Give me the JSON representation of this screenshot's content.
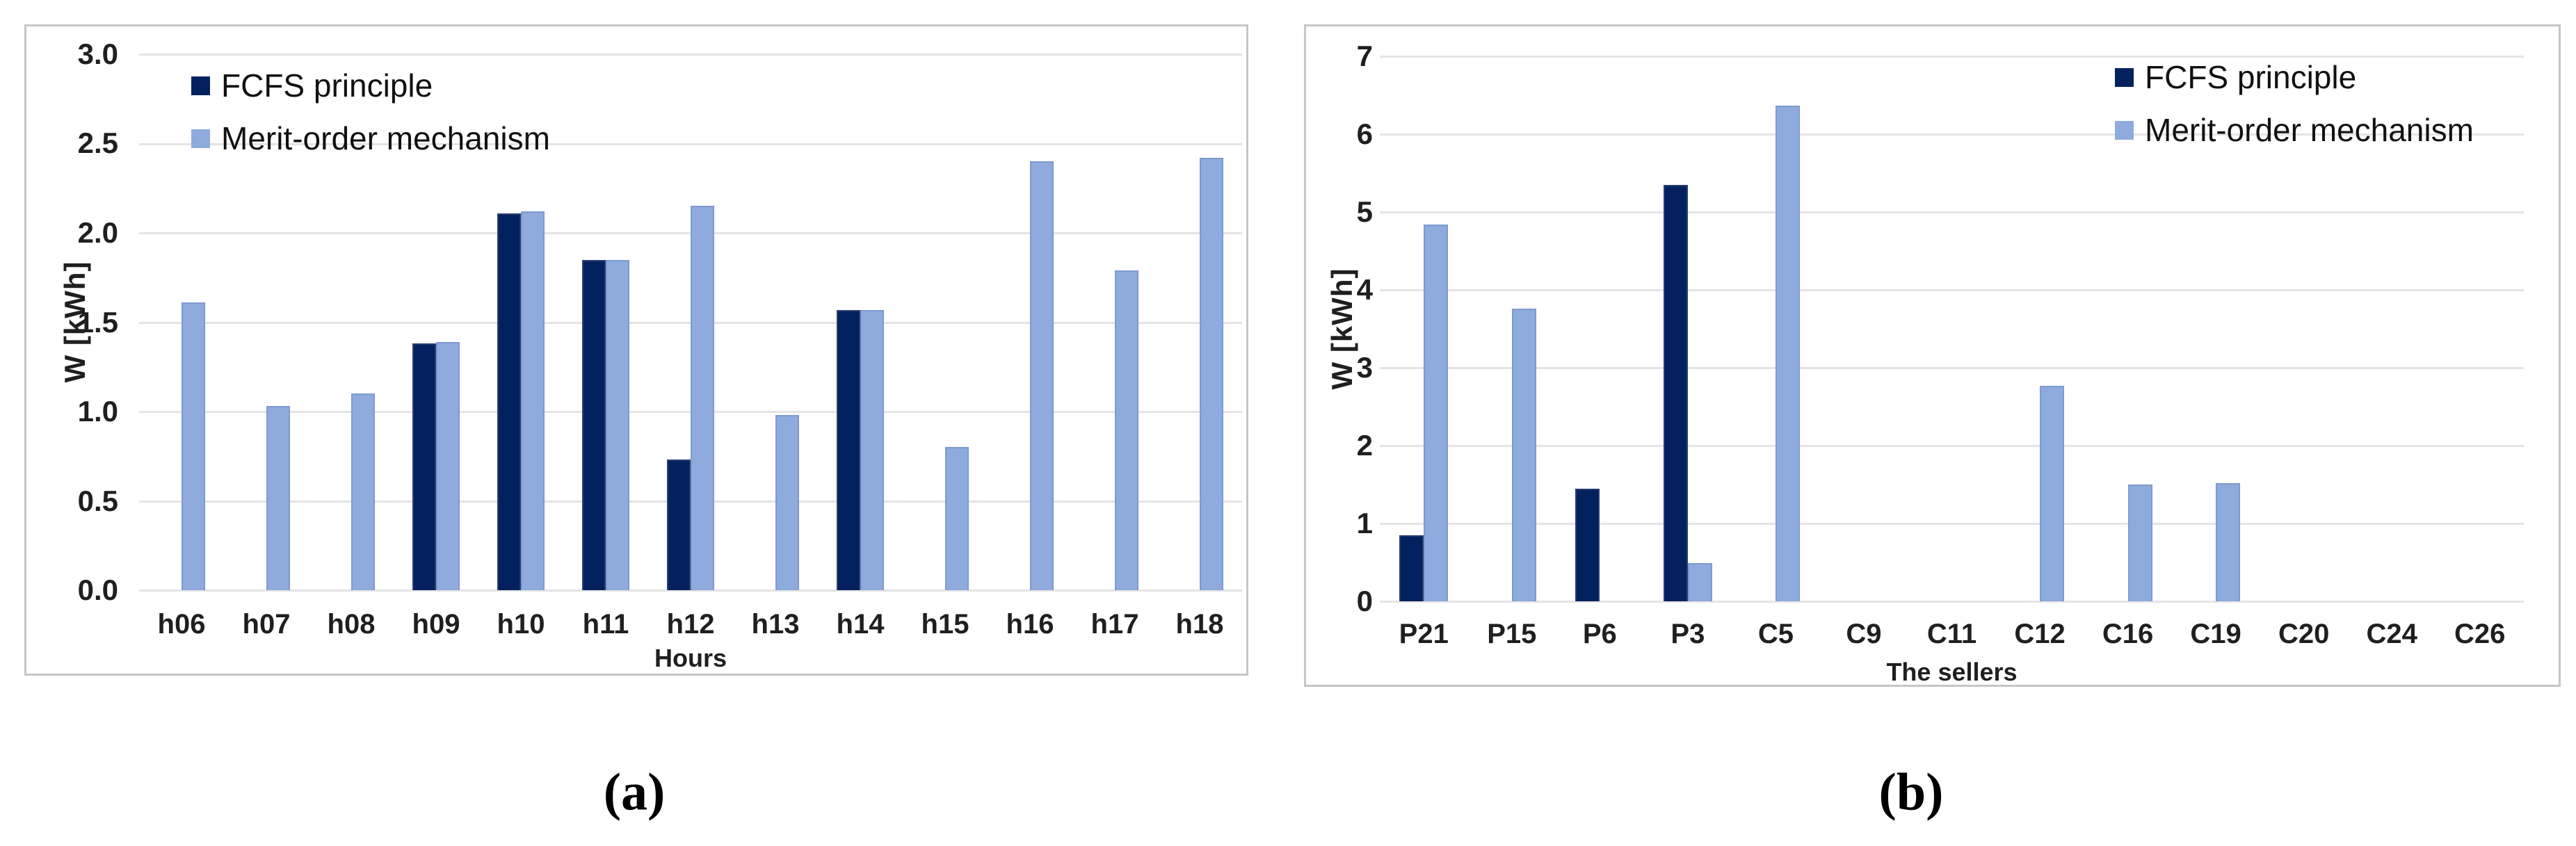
{
  "captions": {
    "a": "(a)",
    "b": "(b)"
  },
  "colors": {
    "fcfs": "#03215f",
    "fcfs_border": "#2b3f6f",
    "merit": "#8faadc",
    "merit_border": "#7e9ad0",
    "gridline": "#e4e4e4",
    "panel_border": "#c6c6c6"
  },
  "chart_data": [
    {
      "id": "a",
      "type": "bar",
      "title": "",
      "xlabel": "Hours",
      "ylabel": "W [kWh]",
      "ylim": [
        0,
        3
      ],
      "grid": true,
      "legend_position": "top-left-inside",
      "yticks": [
        "3.0",
        "2.5",
        "2.0",
        "1.5",
        "1.0",
        "0.5",
        "0.0"
      ],
      "categories": [
        "h06",
        "h07",
        "h08",
        "h09",
        "h10",
        "h11",
        "h12",
        "h13",
        "h14",
        "h15",
        "h16",
        "h17",
        "h18"
      ],
      "series": [
        {
          "name": "FCFS principle",
          "color": "#03215f",
          "border": "#2b3f6f",
          "values": [
            0,
            0,
            0,
            1.38,
            2.11,
            1.85,
            0.73,
            0,
            1.57,
            0,
            0,
            0,
            0
          ]
        },
        {
          "name": "Merit-order mechanism",
          "color": "#8faadc",
          "border": "#7e9ad0",
          "values": [
            1.61,
            1.03,
            1.1,
            1.39,
            2.12,
            1.85,
            2.15,
            0.98,
            1.57,
            0.8,
            2.4,
            1.79,
            2.42
          ]
        }
      ]
    },
    {
      "id": "b",
      "type": "bar",
      "title": "",
      "xlabel": "The sellers",
      "ylabel": "W [kWh]",
      "ylim": [
        0,
        7
      ],
      "grid": true,
      "legend_position": "top-right-inside",
      "yticks": [
        "7",
        "6",
        "5",
        "4",
        "3",
        "2",
        "1",
        "0"
      ],
      "categories": [
        "P21",
        "P15",
        "P6",
        "P3",
        "C5",
        "C9",
        "C11",
        "C12",
        "C16",
        "C19",
        "C20",
        "C24",
        "C26"
      ],
      "series": [
        {
          "name": "FCFS principle",
          "color": "#03215f",
          "border": "#2b3f6f",
          "values": [
            0.85,
            0,
            1.45,
            5.35,
            0,
            0,
            0,
            0,
            0,
            0,
            0,
            0,
            0
          ]
        },
        {
          "name": "Merit-order mechanism",
          "color": "#8faadc",
          "border": "#7e9ad0",
          "values": [
            4.84,
            3.76,
            0,
            0.49,
            6.37,
            0,
            0,
            2.77,
            1.5,
            1.52,
            0,
            0,
            0
          ]
        }
      ]
    }
  ]
}
